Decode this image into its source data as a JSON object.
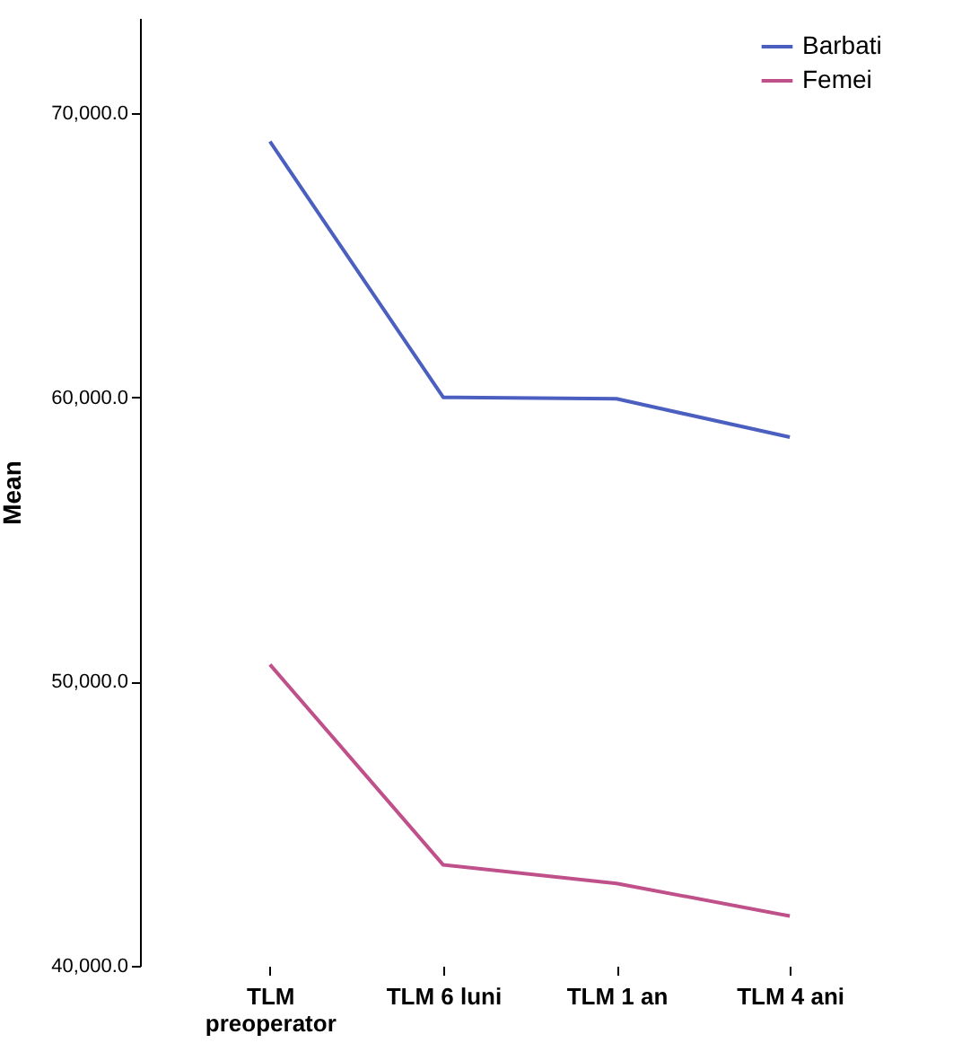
{
  "chart_data": {
    "type": "line",
    "ylabel": "Mean",
    "categories": [
      "TLM preoperator",
      "TLM 6 luni",
      "TLM 1 an",
      "TLM 4 ani"
    ],
    "series": [
      {
        "name": "Barbati",
        "color": "#4a5fbf",
        "values": [
          69000,
          60000,
          59950,
          58600
        ]
      },
      {
        "name": "Femei",
        "color": "#c0508a",
        "values": [
          50600,
          43550,
          42900,
          41750
        ]
      }
    ],
    "ylim": [
      40000,
      73350
    ],
    "yticks": [
      {
        "value": 40000,
        "label": "40,000.0"
      },
      {
        "value": 50000,
        "label": "50,000.0"
      },
      {
        "value": 60000,
        "label": "60,000.0"
      },
      {
        "value": 70000,
        "label": "70,000.0"
      }
    ],
    "grid": false,
    "legend": "top right",
    "marker": "none"
  }
}
